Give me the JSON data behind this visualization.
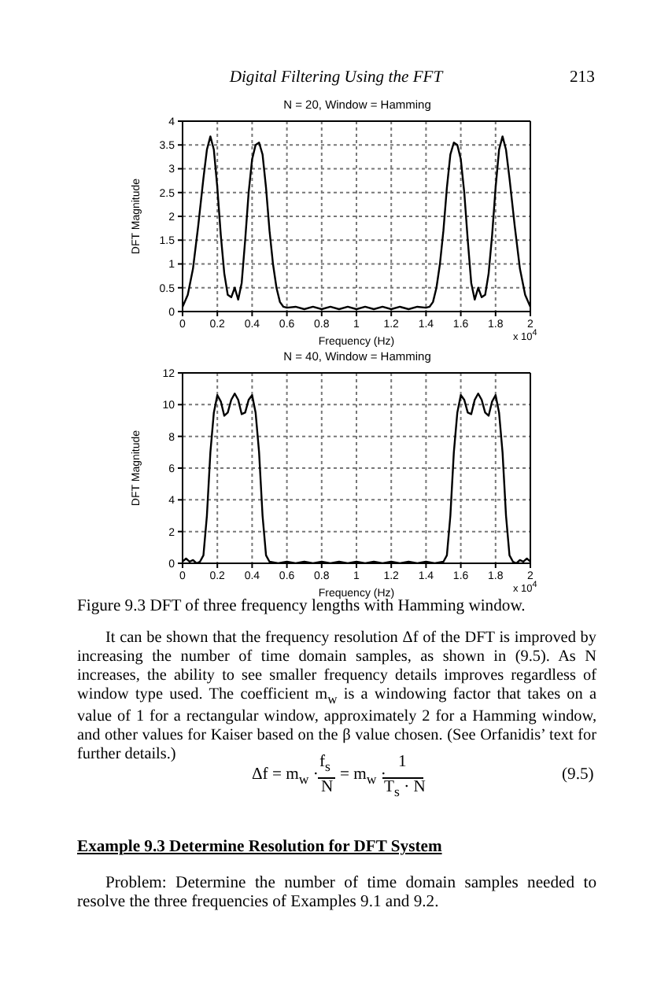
{
  "chart_data": [
    {
      "type": "line",
      "title": "N = 20, Window = Hamming",
      "xlabel": "Frequency (Hz)",
      "ylabel": "DFT Magnitude",
      "color": "#000000",
      "grid": true,
      "annotations": [
        "Digital Filtering Using the FFT",
        "213",
        "x 10$^{4}$"
      ],
      "x": [
        0,
        0.03,
        0.06,
        0.09,
        0.12,
        0.14,
        0.16,
        0.18,
        0.2,
        0.22,
        0.24,
        0.26,
        0.28,
        0.3,
        0.32,
        0.34,
        0.36,
        0.38,
        0.4,
        0.42,
        0.44,
        0.46,
        0.48,
        0.5,
        0.52,
        0.54,
        0.56,
        0.58,
        0.6,
        0.65,
        0.7,
        0.75,
        0.8,
        0.85,
        0.9,
        0.95,
        1.0,
        1.05,
        1.1,
        1.15,
        1.2,
        1.25,
        1.3,
        1.35,
        1.4,
        1.42,
        1.44,
        1.46,
        1.48,
        1.5,
        1.52,
        1.54,
        1.56,
        1.58,
        1.6,
        1.62,
        1.64,
        1.66,
        1.68,
        1.7,
        1.72,
        1.74,
        1.76,
        1.78,
        1.8,
        1.82,
        1.84,
        1.86,
        1.88,
        1.91,
        1.94,
        1.97,
        2.0
      ],
      "values": [
        0.1,
        0.35,
        0.9,
        1.8,
        2.8,
        3.4,
        3.68,
        3.4,
        2.6,
        1.6,
        0.8,
        0.35,
        0.3,
        0.5,
        0.25,
        0.6,
        1.5,
        2.5,
        3.2,
        3.5,
        3.55,
        3.3,
        2.6,
        1.7,
        1.0,
        0.5,
        0.2,
        0.1,
        0.08,
        0.1,
        0.05,
        0.1,
        0.05,
        0.1,
        0.05,
        0.1,
        0.05,
        0.1,
        0.05,
        0.1,
        0.05,
        0.1,
        0.05,
        0.1,
        0.08,
        0.1,
        0.2,
        0.5,
        1.0,
        1.7,
        2.6,
        3.3,
        3.55,
        3.5,
        3.2,
        2.5,
        1.5,
        0.6,
        0.25,
        0.5,
        0.3,
        0.35,
        0.8,
        1.6,
        2.6,
        3.4,
        3.68,
        3.4,
        2.8,
        1.8,
        0.9,
        0.35,
        0.1
      ],
      "xlim": [
        0,
        2
      ],
      "xticks": [
        0,
        0.2,
        0.4,
        0.6,
        0.8,
        1,
        1.2,
        1.4,
        1.6,
        1.8,
        2
      ],
      "ylim": [
        0,
        4
      ],
      "yticks": [
        0,
        0.5,
        1,
        1.5,
        2,
        2.5,
        3,
        3.5,
        4
      ]
    },
    {
      "type": "line",
      "title": "N = 40, Window = Hamming",
      "xlabel": "Frequency (Hz)",
      "ylabel": "DFT Magnitude",
      "color": "#000000",
      "grid": true,
      "annotations": [
        "x 10$^{4}$",
        "Figure 9.3  DFT of three frequency lengths with Hamming window.",
        "It can be shown that the frequency resolution Δf of the DFT is improved by increasing the number of time domain samples, as shown in (9.5). As N increases, the ability to see smaller frequency details improves regardless of window type used. The coefficient m$_{w}$ is a windowing factor that takes on a value of 1 for a rectangular window, approximately 2 for a Hamming window, and other values for Kaiser based on the β value chosen. (See Orfanidis’ text for further details.)",
        "Δf = m$_{w}$ ·",
        "f$_{s}$",
        "N",
        "= m$_{w}$ ·",
        "1",
        "T$_{s}$ · N",
        "(9.5)",
        "Example 9.3  Determine Resolution for DFT System",
        "Problem: Determine the number of time domain samples needed to resolve the three frequencies of Examples 9.1 and 9.2."
      ],
      "x": [
        0,
        0.02,
        0.04,
        0.06,
        0.08,
        0.1,
        0.12,
        0.14,
        0.16,
        0.18,
        0.2,
        0.22,
        0.24,
        0.26,
        0.28,
        0.3,
        0.32,
        0.34,
        0.36,
        0.38,
        0.4,
        0.42,
        0.44,
        0.46,
        0.48,
        0.5,
        0.55,
        0.6,
        0.65,
        0.7,
        0.75,
        0.8,
        0.85,
        0.9,
        0.95,
        1.0,
        1.05,
        1.1,
        1.15,
        1.2,
        1.25,
        1.3,
        1.35,
        1.4,
        1.45,
        1.5,
        1.52,
        1.54,
        1.56,
        1.58,
        1.6,
        1.62,
        1.64,
        1.66,
        1.68,
        1.7,
        1.72,
        1.74,
        1.76,
        1.78,
        1.8,
        1.82,
        1.84,
        1.86,
        1.88,
        1.9,
        1.92,
        1.94,
        1.96,
        1.98,
        2.0
      ],
      "values": [
        0.1,
        0.3,
        0.1,
        0.2,
        0,
        0.1,
        0.5,
        3,
        7,
        9.5,
        10.6,
        10.2,
        9.3,
        9.5,
        10.3,
        10.7,
        10.3,
        9.4,
        9.5,
        10.3,
        10.6,
        9.5,
        7,
        3,
        0.5,
        0.1,
        0,
        0.1,
        0,
        0.1,
        0,
        0.1,
        0,
        0.1,
        0,
        0.1,
        0,
        0.1,
        0,
        0.1,
        0,
        0.1,
        0,
        0.1,
        0,
        0.1,
        0.5,
        3,
        7,
        9.5,
        10.6,
        10.3,
        9.5,
        9.4,
        10.3,
        10.7,
        10.3,
        9.5,
        9.3,
        10.2,
        10.6,
        9.5,
        7,
        3,
        0.5,
        0.1,
        0,
        0.2,
        0.1,
        0.3,
        0.1
      ],
      "xlim": [
        0,
        2
      ],
      "xticks": [
        0,
        0.2,
        0.4,
        0.6,
        0.8,
        1,
        1.2,
        1.4,
        1.6,
        1.8,
        2
      ],
      "ylim": [
        0,
        12
      ],
      "yticks": [
        0,
        2,
        4,
        6,
        8,
        10,
        12
      ]
    }
  ]
}
